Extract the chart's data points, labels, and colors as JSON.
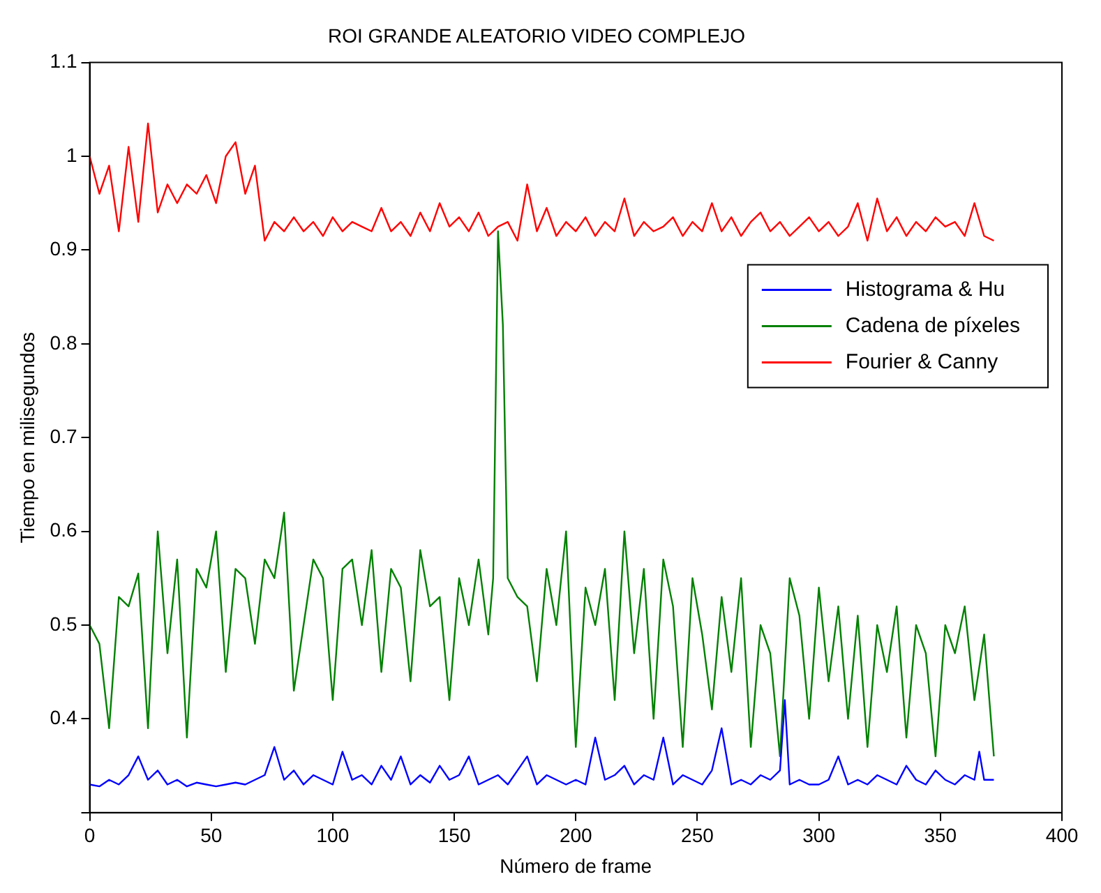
{
  "chart_data": {
    "type": "line",
    "title": "ROI GRANDE ALEATORIO VIDEO COMPLEJO",
    "xlabel": "Número de frame",
    "ylabel": "Tiempo en milisegundos",
    "xlim": [
      0,
      400
    ],
    "xticks": [
      0,
      50,
      100,
      150,
      200,
      250,
      300,
      350,
      400
    ],
    "ylim": [
      0.3,
      1.1
    ],
    "yticks": [
      {
        "value": 0.3,
        "label": null
      },
      0.4,
      0.5,
      0.6,
      0.7,
      0.8,
      0.9,
      1,
      1.1
    ],
    "grid": false,
    "legend": "top right",
    "marker": "none",
    "line_style": "solid",
    "series": [
      {
        "name": "Histograma & Hu",
        "color": "#0000ff",
        "x": [
          0,
          4,
          8,
          12,
          16,
          20,
          24,
          28,
          32,
          36,
          40,
          44,
          48,
          52,
          56,
          60,
          64,
          68,
          72,
          76,
          80,
          84,
          88,
          92,
          96,
          100,
          104,
          108,
          112,
          116,
          120,
          124,
          128,
          132,
          136,
          140,
          144,
          148,
          152,
          156,
          160,
          164,
          168,
          172,
          176,
          180,
          184,
          188,
          192,
          196,
          200,
          204,
          208,
          212,
          216,
          220,
          224,
          228,
          232,
          236,
          240,
          244,
          248,
          252,
          256,
          260,
          264,
          268,
          272,
          276,
          280,
          284,
          286,
          288,
          292,
          296,
          300,
          304,
          308,
          312,
          316,
          320,
          324,
          328,
          332,
          336,
          340,
          344,
          348,
          352,
          356,
          360,
          364,
          366,
          368,
          372
        ],
        "values": [
          0.33,
          0.328,
          0.335,
          0.33,
          0.34,
          0.36,
          0.335,
          0.345,
          0.33,
          0.335,
          0.328,
          0.332,
          0.33,
          0.328,
          0.33,
          0.332,
          0.33,
          0.335,
          0.34,
          0.37,
          0.335,
          0.345,
          0.33,
          0.34,
          0.335,
          0.33,
          0.365,
          0.335,
          0.34,
          0.33,
          0.35,
          0.335,
          0.36,
          0.33,
          0.34,
          0.332,
          0.35,
          0.335,
          0.34,
          0.36,
          0.33,
          0.335,
          0.34,
          0.33,
          0.345,
          0.36,
          0.33,
          0.34,
          0.335,
          0.33,
          0.335,
          0.33,
          0.38,
          0.335,
          0.34,
          0.35,
          0.33,
          0.34,
          0.335,
          0.38,
          0.33,
          0.34,
          0.335,
          0.33,
          0.345,
          0.39,
          0.33,
          0.335,
          0.33,
          0.34,
          0.335,
          0.345,
          0.42,
          0.33,
          0.335,
          0.33,
          0.33,
          0.335,
          0.36,
          0.33,
          0.335,
          0.33,
          0.34,
          0.335,
          0.33,
          0.35,
          0.335,
          0.33,
          0.345,
          0.335,
          0.33,
          0.34,
          0.335,
          0.365,
          0.335,
          0.335
        ]
      },
      {
        "name": "Cadena de píxeles",
        "color": "#008000",
        "x": [
          0,
          4,
          8,
          12,
          16,
          20,
          24,
          28,
          32,
          36,
          40,
          44,
          48,
          52,
          56,
          60,
          64,
          68,
          72,
          76,
          80,
          84,
          88,
          92,
          96,
          100,
          104,
          108,
          112,
          116,
          120,
          124,
          128,
          132,
          136,
          140,
          144,
          148,
          152,
          156,
          160,
          164,
          166,
          168,
          170,
          172,
          176,
          180,
          184,
          188,
          192,
          196,
          200,
          204,
          208,
          212,
          216,
          220,
          224,
          228,
          232,
          236,
          240,
          244,
          248,
          252,
          256,
          260,
          264,
          268,
          272,
          276,
          280,
          284,
          288,
          292,
          296,
          300,
          304,
          308,
          312,
          316,
          320,
          324,
          328,
          332,
          336,
          340,
          344,
          348,
          352,
          356,
          360,
          364,
          368,
          372
        ],
        "values": [
          0.5,
          0.48,
          0.39,
          0.53,
          0.52,
          0.555,
          0.39,
          0.6,
          0.47,
          0.57,
          0.38,
          0.56,
          0.54,
          0.6,
          0.45,
          0.56,
          0.55,
          0.48,
          0.57,
          0.55,
          0.62,
          0.43,
          0.5,
          0.57,
          0.55,
          0.42,
          0.56,
          0.57,
          0.5,
          0.58,
          0.45,
          0.56,
          0.54,
          0.44,
          0.58,
          0.52,
          0.53,
          0.42,
          0.55,
          0.5,
          0.57,
          0.49,
          0.55,
          0.92,
          0.82,
          0.55,
          0.53,
          0.52,
          0.44,
          0.56,
          0.5,
          0.6,
          0.37,
          0.54,
          0.5,
          0.56,
          0.42,
          0.6,
          0.47,
          0.56,
          0.4,
          0.57,
          0.52,
          0.37,
          0.55,
          0.49,
          0.41,
          0.53,
          0.45,
          0.55,
          0.37,
          0.5,
          0.47,
          0.36,
          0.55,
          0.51,
          0.4,
          0.54,
          0.44,
          0.52,
          0.4,
          0.51,
          0.37,
          0.5,
          0.45,
          0.52,
          0.38,
          0.5,
          0.47,
          0.36,
          0.5,
          0.47,
          0.52,
          0.42,
          0.49,
          0.36
        ]
      },
      {
        "name": "Fourier & Canny",
        "color": "#ff0000",
        "x": [
          0,
          4,
          8,
          12,
          16,
          20,
          24,
          28,
          32,
          36,
          40,
          44,
          48,
          52,
          56,
          60,
          64,
          68,
          72,
          76,
          80,
          84,
          88,
          92,
          96,
          100,
          104,
          108,
          112,
          116,
          120,
          124,
          128,
          132,
          136,
          140,
          144,
          148,
          152,
          156,
          160,
          164,
          168,
          172,
          176,
          180,
          184,
          188,
          192,
          196,
          200,
          204,
          208,
          212,
          216,
          220,
          224,
          228,
          232,
          236,
          240,
          244,
          248,
          252,
          256,
          260,
          264,
          268,
          272,
          276,
          280,
          284,
          288,
          292,
          296,
          300,
          304,
          308,
          312,
          316,
          320,
          324,
          328,
          332,
          336,
          340,
          344,
          348,
          352,
          356,
          360,
          364,
          368,
          372
        ],
        "values": [
          1.0,
          0.96,
          0.99,
          0.92,
          1.01,
          0.93,
          1.035,
          0.94,
          0.97,
          0.95,
          0.97,
          0.96,
          0.98,
          0.95,
          1.0,
          1.015,
          0.96,
          0.99,
          0.91,
          0.93,
          0.92,
          0.935,
          0.92,
          0.93,
          0.915,
          0.935,
          0.92,
          0.93,
          0.925,
          0.92,
          0.945,
          0.92,
          0.93,
          0.915,
          0.94,
          0.92,
          0.95,
          0.925,
          0.935,
          0.92,
          0.94,
          0.915,
          0.925,
          0.93,
          0.91,
          0.97,
          0.92,
          0.945,
          0.915,
          0.93,
          0.92,
          0.935,
          0.915,
          0.93,
          0.92,
          0.955,
          0.915,
          0.93,
          0.92,
          0.925,
          0.935,
          0.915,
          0.93,
          0.92,
          0.95,
          0.92,
          0.935,
          0.915,
          0.93,
          0.94,
          0.92,
          0.93,
          0.915,
          0.925,
          0.935,
          0.92,
          0.93,
          0.915,
          0.925,
          0.95,
          0.91,
          0.955,
          0.92,
          0.935,
          0.915,
          0.93,
          0.92,
          0.935,
          0.925,
          0.93,
          0.915,
          0.95,
          0.915,
          0.91
        ]
      }
    ]
  }
}
